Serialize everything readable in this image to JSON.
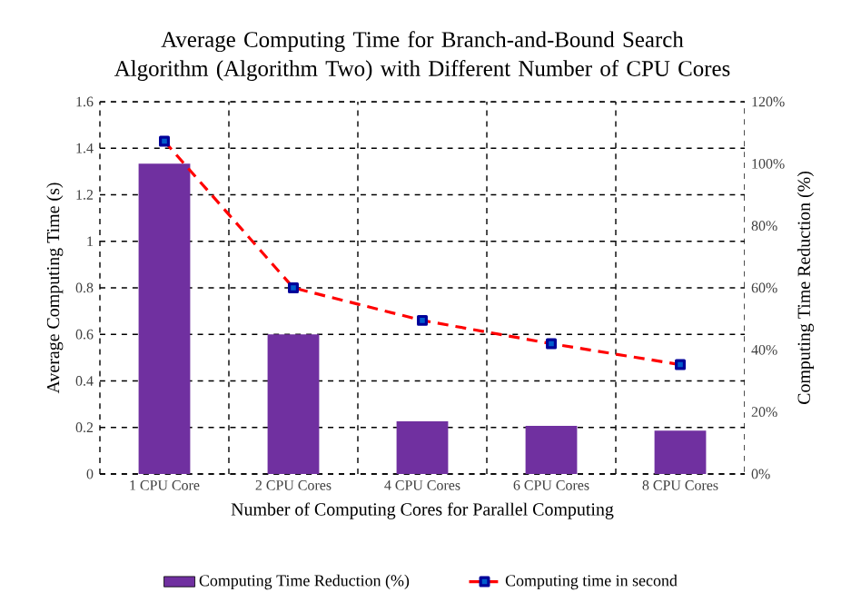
{
  "chart_data": {
    "type": "bar",
    "title": "Average Computing Time for Branch-and-Bound Search Algorithm (Algorithm Two) with Different Number of CPU Cores",
    "xlabel": "Number of Computing Cores for Parallel Computing",
    "ylabel": "Average Computing Time (s)",
    "y2label": "Computing Time Reduction (%)",
    "categories": [
      "1 CPU Core",
      "2 CPU Cores",
      "4 CPU Cores",
      "6 CPU Cores",
      "8 CPU Cores"
    ],
    "series": [
      {
        "name": "Computing Time Reduction (%)",
        "axis": "y2",
        "color": "#7030a0",
        "values": [
          100,
          45,
          17,
          15.5,
          14
        ]
      },
      {
        "name": "Computing time in second",
        "type": "line",
        "axis": "y",
        "color": "#ff0000",
        "marker": "square",
        "line_style": "dashed",
        "values": [
          1.43,
          0.8,
          0.66,
          0.56,
          0.47
        ]
      }
    ],
    "ylim": [
      0,
      1.6
    ],
    "yticks": [
      0,
      0.2,
      0.4,
      0.6,
      0.8,
      1,
      1.2,
      1.4,
      1.6
    ],
    "y2lim": [
      0,
      120
    ],
    "y2ticks": [
      {
        "value": 0,
        "label": "0%"
      },
      {
        "value": 20,
        "label": "20%"
      },
      {
        "value": 40,
        "label": "40%"
      },
      {
        "value": 60,
        "label": "60%"
      },
      {
        "value": 80,
        "label": "80%"
      },
      {
        "value": 100,
        "label": "100%"
      },
      {
        "value": 120,
        "label": "120%"
      }
    ],
    "grid": true,
    "legend": "bottom"
  }
}
